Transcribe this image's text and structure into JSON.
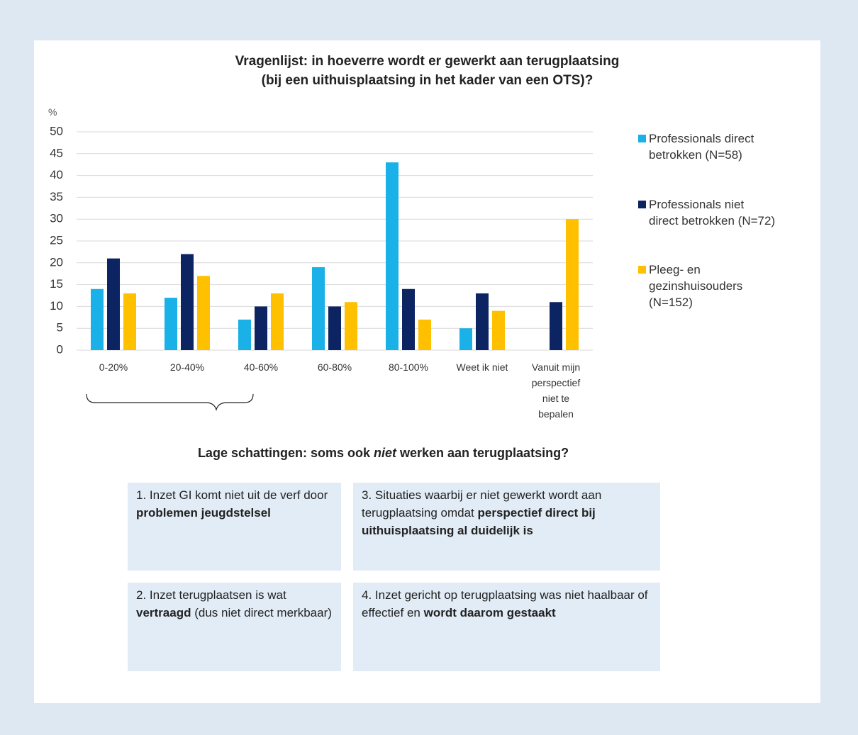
{
  "chart_data": {
    "type": "bar",
    "title": "Vragenlijst: in hoeverre wordt er gewerkt aan terugplaatsing\n(bij een uithuisplaatsing in het kader van een OTS)?",
    "ylabel": "%",
    "categories": [
      "0-20%",
      "20-40%",
      "40-60%",
      "60-80%",
      "80-100%",
      "Weet ik niet",
      "Vanuit mijn\nperspectief\nniet te\nbepalen"
    ],
    "series": [
      {
        "name": "Professionals direct\nbetrokken (N=58)",
        "color": "#1ab0e8",
        "values": [
          14,
          12,
          7,
          19,
          43,
          5,
          null
        ]
      },
      {
        "name": "Professionals niet\ndirect betrokken (N=72)",
        "color": "#0c2461",
        "values": [
          21,
          22,
          10,
          10,
          14,
          13,
          11
        ]
      },
      {
        "name": "Pleeg- en\ngezinshuisouders\n(N=152)",
        "color": "#ffc000",
        "values": [
          13,
          17,
          13,
          11,
          7,
          9,
          30
        ]
      }
    ],
    "ylim": [
      0,
      50
    ],
    "yticks": [
      0,
      5,
      10,
      15,
      20,
      25,
      30,
      35,
      40,
      45,
      50
    ],
    "grid": true,
    "legend": "right"
  },
  "heading": {
    "runs": [
      {
        "text": "Lage schattingen: soms ook "
      },
      {
        "text": "niet",
        "italic": true
      },
      {
        "text": " werken aan terugplaatsing?"
      }
    ]
  },
  "boxes": [
    {
      "runs": [
        {
          "text": "1. Inzet GI komt niet uit de verf door "
        },
        {
          "text": "problemen jeugdstelsel",
          "bold": true
        }
      ]
    },
    {
      "runs": [
        {
          "text": "2. Inzet terugplaatsen is wat "
        },
        {
          "text": "vertraagd",
          "bold": true
        },
        {
          "text": "  (dus niet direct merkbaar)"
        }
      ]
    },
    {
      "runs": [
        {
          "text": "3. Situaties waarbij er niet gewerkt wordt aan terugplaatsing omdat "
        },
        {
          "text": "perspectief direct bij uithuisplaatsing al  duidelijk is",
          "bold": true
        }
      ]
    },
    {
      "runs": [
        {
          "text": "4. Inzet gericht op terugplaatsing was niet haalbaar of effectief en "
        },
        {
          "text": "wordt daarom gestaakt",
          "bold": true
        }
      ]
    }
  ]
}
